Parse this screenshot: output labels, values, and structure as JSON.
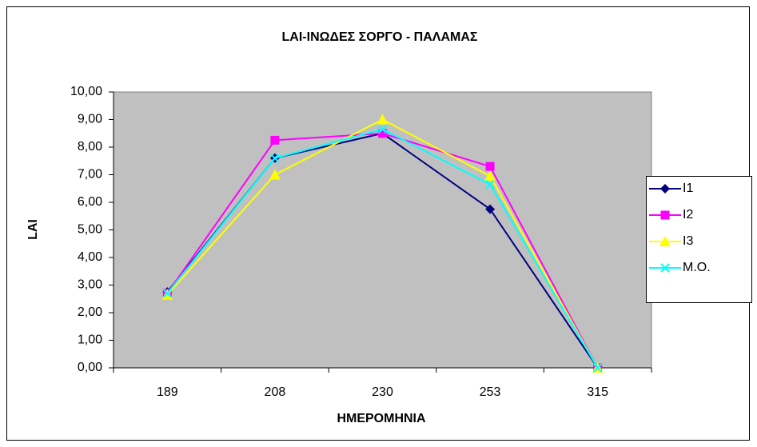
{
  "chart_data": {
    "type": "line",
    "title": "LAI-ΙΝΩΔΕΣ ΣΟΡΓΟ - ΠΑΛΑΜΑΣ",
    "x_label": "ΗΜΕΡΟΜΗΝΙΑ",
    "y_label": "LAI",
    "categories": [
      "189",
      "208",
      "230",
      "253",
      "315"
    ],
    "series": [
      {
        "name": "I1",
        "color": "#000080",
        "marker": "diamond",
        "values": [
          2.75,
          7.6,
          8.5,
          5.75,
          0
        ]
      },
      {
        "name": "I2",
        "color": "#ff00ff",
        "marker": "square",
        "values": [
          2.7,
          8.25,
          8.5,
          7.3,
          0
        ]
      },
      {
        "name": "I3",
        "color": "#ffff00",
        "marker": "triangle",
        "values": [
          2.65,
          7.0,
          9.0,
          6.95,
          0
        ]
      },
      {
        "name": "M.O.",
        "color": "#00ffff",
        "marker": "x",
        "values": [
          2.7,
          7.6,
          8.65,
          6.65,
          0
        ]
      }
    ],
    "ylim": [
      0,
      10
    ],
    "yticks": [
      {
        "value": 0,
        "label": "0,00"
      },
      {
        "value": 1,
        "label": "1,00"
      },
      {
        "value": 2,
        "label": "2,00"
      },
      {
        "value": 3,
        "label": "3,00"
      },
      {
        "value": 4,
        "label": "4,00"
      },
      {
        "value": 5,
        "label": "5,00"
      },
      {
        "value": 6,
        "label": "6,00"
      },
      {
        "value": 7,
        "label": "7,00"
      },
      {
        "value": 8,
        "label": "8,00"
      },
      {
        "value": 9,
        "label": "9,00"
      },
      {
        "value": 10,
        "label": "10,00"
      }
    ],
    "grid": false,
    "legend": "right",
    "plot_background": "#c0c0c0"
  }
}
